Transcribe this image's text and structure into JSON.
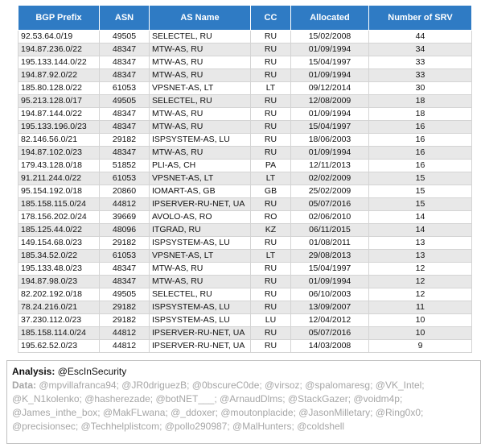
{
  "table": {
    "columns": [
      "BGP Prefix",
      "ASN",
      "AS Name",
      "CC",
      "Allocated",
      "Number of SRV"
    ],
    "rows": [
      [
        "92.53.64.0/19",
        "49505",
        "SELECTEL, RU",
        "RU",
        "15/02/2008",
        "44"
      ],
      [
        "194.87.236.0/22",
        "48347",
        "MTW-AS, RU",
        "RU",
        "01/09/1994",
        "34"
      ],
      [
        "195.133.144.0/22",
        "48347",
        "MTW-AS, RU",
        "RU",
        "15/04/1997",
        "33"
      ],
      [
        "194.87.92.0/22",
        "48347",
        "MTW-AS, RU",
        "RU",
        "01/09/1994",
        "33"
      ],
      [
        "185.80.128.0/22",
        "61053",
        "VPSNET-AS, LT",
        "LT",
        "09/12/2014",
        "30"
      ],
      [
        "95.213.128.0/17",
        "49505",
        "SELECTEL, RU",
        "RU",
        "12/08/2009",
        "18"
      ],
      [
        "194.87.144.0/22",
        "48347",
        "MTW-AS, RU",
        "RU",
        "01/09/1994",
        "18"
      ],
      [
        "195.133.196.0/23",
        "48347",
        "MTW-AS, RU",
        "RU",
        "15/04/1997",
        "16"
      ],
      [
        "82.146.56.0/21",
        "29182",
        "ISPSYSTEM-AS, LU",
        "RU",
        "18/06/2003",
        "16"
      ],
      [
        "194.87.102.0/23",
        "48347",
        "MTW-AS, RU",
        "RU",
        "01/09/1994",
        "16"
      ],
      [
        "179.43.128.0/18",
        "51852",
        "PLI-AS, CH",
        "PA",
        "12/11/2013",
        "16"
      ],
      [
        "91.211.244.0/22",
        "61053",
        "VPSNET-AS, LT",
        "LT",
        "02/02/2009",
        "15"
      ],
      [
        "95.154.192.0/18",
        "20860",
        "IOMART-AS, GB",
        "GB",
        "25/02/2009",
        "15"
      ],
      [
        "185.158.115.0/24",
        "44812",
        "IPSERVER-RU-NET, UA",
        "RU",
        "05/07/2016",
        "15"
      ],
      [
        "178.156.202.0/24",
        "39669",
        "AVOLO-AS, RO",
        "RO",
        "02/06/2010",
        "14"
      ],
      [
        "185.125.44.0/22",
        "48096",
        "ITGRAD, RU",
        "KZ",
        "06/11/2015",
        "14"
      ],
      [
        "149.154.68.0/23",
        "29182",
        "ISPSYSTEM-AS, LU",
        "RU",
        "01/08/2011",
        "13"
      ],
      [
        "185.34.52.0/22",
        "61053",
        "VPSNET-AS, LT",
        "LT",
        "29/08/2013",
        "13"
      ],
      [
        "195.133.48.0/23",
        "48347",
        "MTW-AS, RU",
        "RU",
        "15/04/1997",
        "12"
      ],
      [
        "194.87.98.0/23",
        "48347",
        "MTW-AS, RU",
        "RU",
        "01/09/1994",
        "12"
      ],
      [
        "82.202.192.0/18",
        "49505",
        "SELECTEL, RU",
        "RU",
        "06/10/2003",
        "12"
      ],
      [
        "78.24.216.0/21",
        "29182",
        "ISPSYSTEM-AS, LU",
        "RU",
        "13/09/2007",
        "11"
      ],
      [
        "37.230.112.0/23",
        "29182",
        "ISPSYSTEM-AS, LU",
        "LU",
        "12/04/2012",
        "10"
      ],
      [
        "185.158.114.0/24",
        "44812",
        "IPSERVER-RU-NET, UA",
        "RU",
        "05/07/2016",
        "10"
      ],
      [
        "195.62.52.0/23",
        "44812",
        "IPSERVER-RU-NET, UA",
        "RU",
        "14/03/2008",
        "9"
      ]
    ]
  },
  "credits": {
    "analysis_label": "Analysis:",
    "analysis_value": "@EscInSecurity",
    "data_label": "Data:",
    "data_value": "@mpvillafranca94; @JR0driguezB; @0bscureC0de; @virsoz; @spalomaresg; @VK_Intel; @K_N1kolenko; @hasherezade; @botNET___; @ArnaudDlms; @StackGazer; @voidm4p; @James_inthe_box; @MakFLwana; @_ddoxer; @moutonplacide; @JasonMilletary; @Ring0x0; @precisionsec; @Techhelplistcom; @pollo290987; @MalHunters; @coldshell"
  }
}
